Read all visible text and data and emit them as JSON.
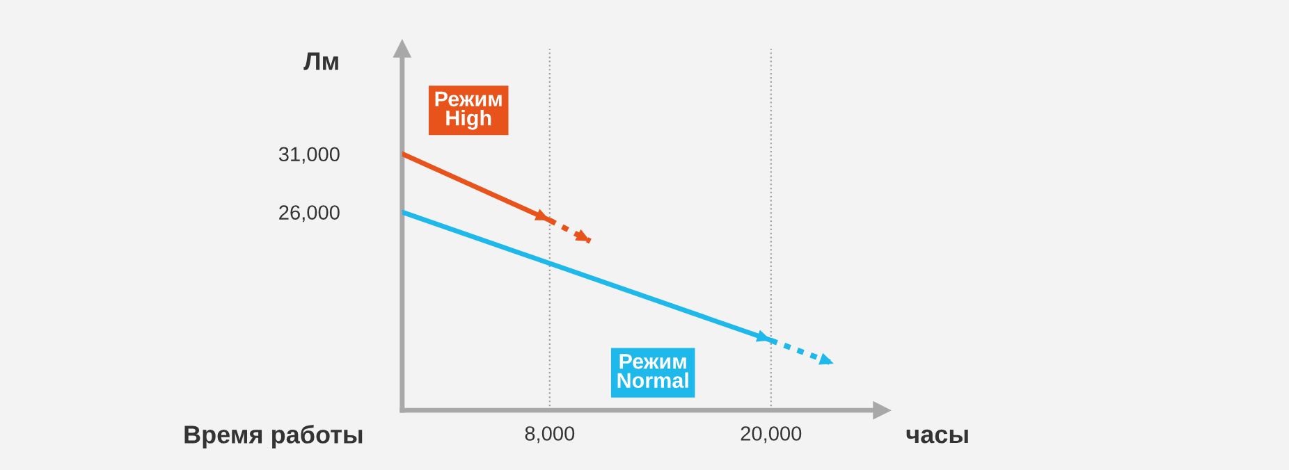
{
  "chart_data": {
    "type": "line",
    "xlabel": "часы",
    "ylabel": "Лм",
    "annotations": [
      "Время работы"
    ],
    "xlim": [
      0,
      26000
    ],
    "ylim": [
      9000,
      40000
    ],
    "xticks": [
      {
        "value": 8000,
        "label": "8,000"
      },
      {
        "value": 20000,
        "label": "20,000"
      }
    ],
    "yticks": [
      {
        "value": 26000,
        "label": "26,000"
      },
      {
        "value": 31000,
        "label": "31,000"
      }
    ],
    "ref_lines": [
      {
        "axis": "x",
        "value": 8000,
        "color": "#a0a0a0",
        "line_style": "dotted"
      },
      {
        "axis": "x",
        "value": 20000,
        "color": "#a0a0a0",
        "line_style": "dotted"
      }
    ],
    "series": [
      {
        "name": "Режим High",
        "color": "#e8531c",
        "x": [
          0,
          8000
        ],
        "values": [
          31000,
          25300
        ],
        "line_style": "solid"
      },
      {
        "color": "#e8531c",
        "x": [
          8000,
          10200
        ],
        "values": [
          25300,
          23500
        ],
        "line_style": "dotted"
      },
      {
        "name": "Режим Normal",
        "color": "#1fb8eb",
        "x": [
          0,
          20000
        ],
        "values": [
          26000,
          15000
        ],
        "line_style": "solid"
      },
      {
        "color": "#1fb8eb",
        "x": [
          20000,
          23400
        ],
        "values": [
          15000,
          13000
        ],
        "line_style": "dotted"
      }
    ],
    "grid": false,
    "legend": false
  }
}
